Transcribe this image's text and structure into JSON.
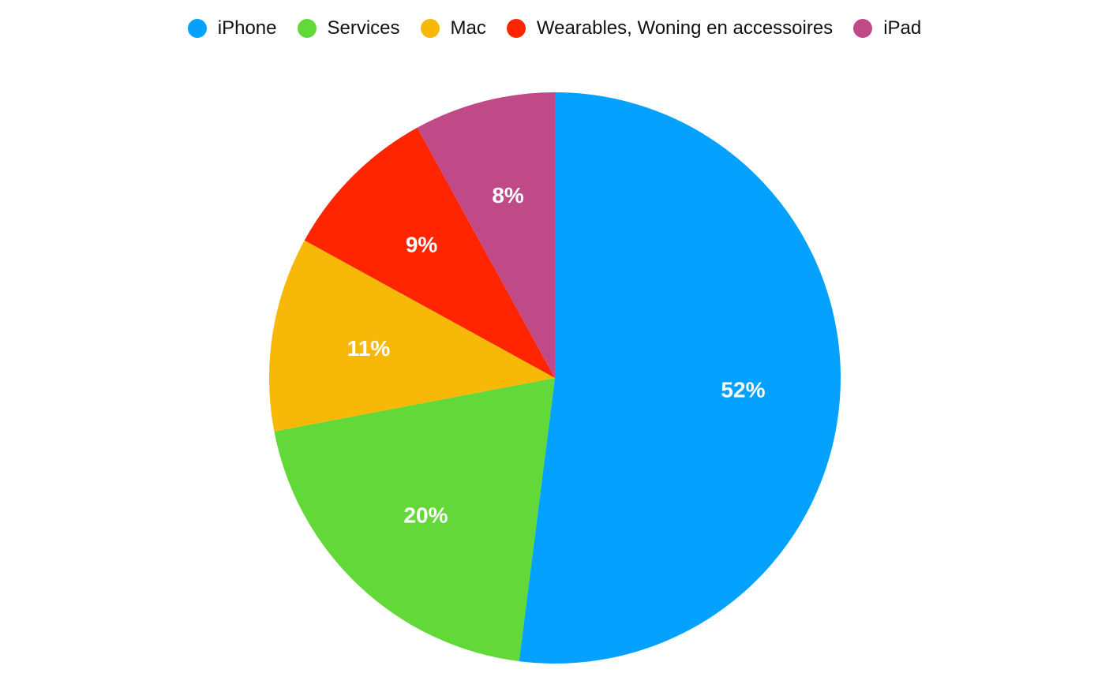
{
  "chart_data": {
    "type": "pie",
    "categories": [
      "iPhone",
      "Services",
      "Mac",
      "Wearables, Woning en accessoires",
      "iPad"
    ],
    "values": [
      52,
      20,
      11,
      9,
      8
    ],
    "labels": [
      "52%",
      "20%",
      "11%",
      "9%",
      "8%"
    ],
    "colors": [
      "#04A2FE",
      "#62D839",
      "#F8B807",
      "#FE2500",
      "#BF4A87"
    ],
    "start_angle": "12 o'clock",
    "direction": "clockwise",
    "legend": "top-center"
  }
}
